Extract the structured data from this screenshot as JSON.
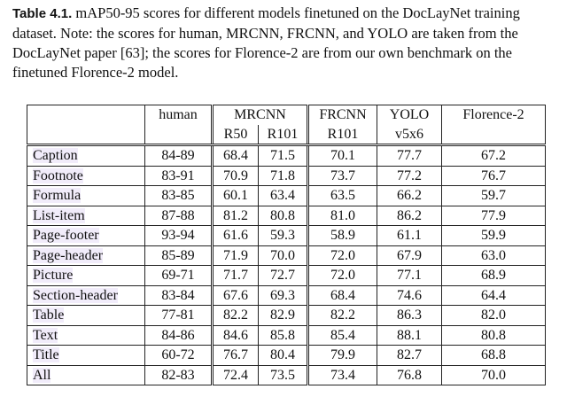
{
  "caption": {
    "label": "Table 4.1.",
    "text": "mAP50-95 scores for different models finetuned on the DocLayNet training dataset. Note: the scores for human, MRCNN, FRCNN, and YOLO are taken from the DocLayNet paper [63]; the scores for Florence-2 are from our own benchmark on the finetuned Florence-2 model."
  },
  "table": {
    "header_row1": [
      "human",
      "MRCNN",
      "FRCNN",
      "YOLO",
      "Florence-2"
    ],
    "header_row2": [
      "R50",
      "R101",
      "R101",
      "v5x6"
    ],
    "rows": [
      [
        "Caption",
        "84-89",
        "68.4",
        "71.5",
        "70.1",
        "77.7",
        "67.2"
      ],
      [
        "Footnote",
        "83-91",
        "70.9",
        "71.8",
        "73.7",
        "77.2",
        "76.7"
      ],
      [
        "Formula",
        "83-85",
        "60.1",
        "63.4",
        "63.5",
        "66.2",
        "59.7"
      ],
      [
        "List-item",
        "87-88",
        "81.2",
        "80.8",
        "81.0",
        "86.2",
        "77.9"
      ],
      [
        "Page-footer",
        "93-94",
        "61.6",
        "59.3",
        "58.9",
        "61.1",
        "59.9"
      ],
      [
        "Page-header",
        "85-89",
        "71.9",
        "70.0",
        "72.0",
        "67.9",
        "63.0"
      ],
      [
        "Picture",
        "69-71",
        "71.7",
        "72.7",
        "72.0",
        "77.1",
        "68.9"
      ],
      [
        "Section-header",
        "83-84",
        "67.6",
        "69.3",
        "68.4",
        "74.6",
        "64.4"
      ],
      [
        "Table",
        "77-81",
        "82.2",
        "82.9",
        "82.2",
        "86.3",
        "82.0"
      ],
      [
        "Text",
        "84-86",
        "84.6",
        "85.8",
        "85.4",
        "88.1",
        "80.8"
      ],
      [
        "Title",
        "60-72",
        "76.7",
        "80.4",
        "79.9",
        "82.7",
        "68.8"
      ],
      [
        "All",
        "82-83",
        "72.4",
        "73.5",
        "73.4",
        "76.8",
        "70.0"
      ]
    ]
  }
}
